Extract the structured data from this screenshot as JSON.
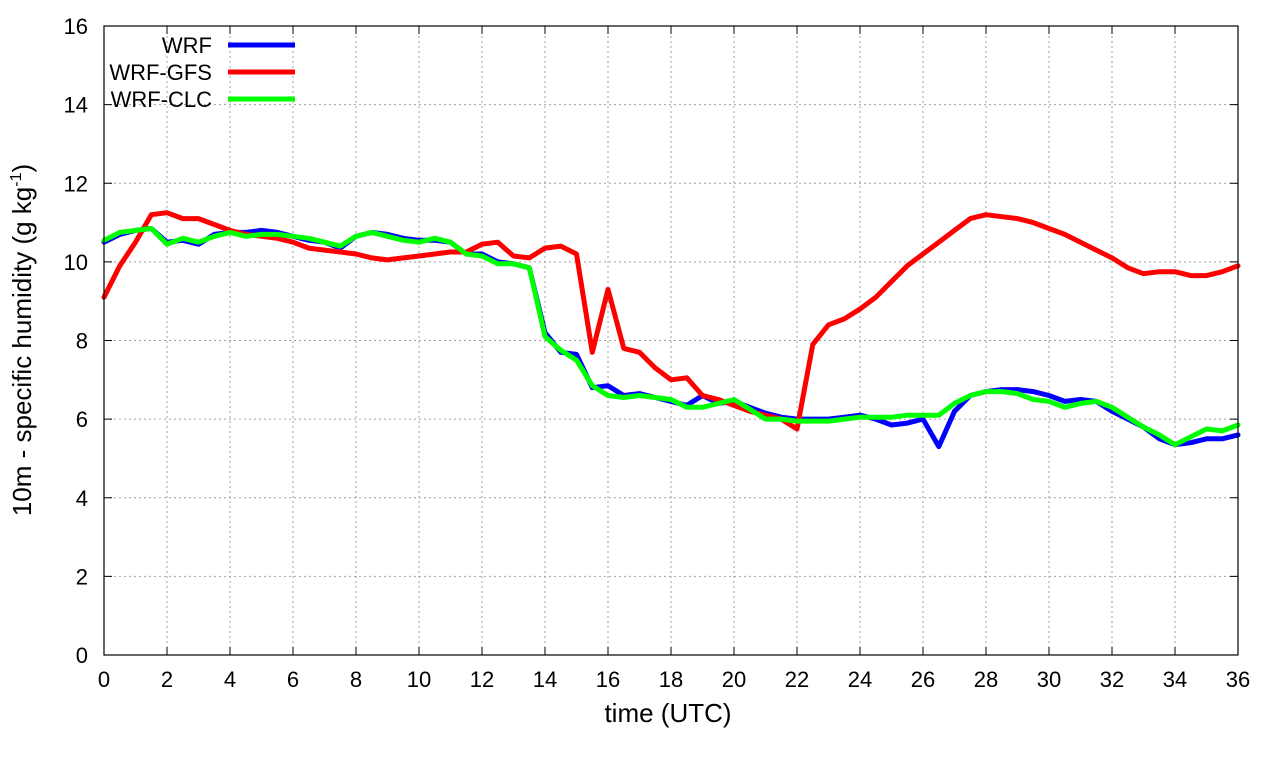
{
  "chart_data": {
    "type": "line",
    "xlabel": "time (UTC)",
    "ylabel_main": "10m - specific humidity (g kg",
    "ylabel_sup": "-1",
    "ylabel_end": ")",
    "xlim": [
      0,
      36
    ],
    "ylim": [
      0,
      16
    ],
    "xticks": [
      0,
      2,
      4,
      6,
      8,
      10,
      12,
      14,
      16,
      18,
      20,
      22,
      24,
      26,
      28,
      30,
      32,
      34,
      36
    ],
    "yticks": [
      0,
      2,
      4,
      6,
      8,
      10,
      12,
      14,
      16
    ],
    "grid": true,
    "legend_position": "top-left",
    "series": [
      {
        "name": "WRF",
        "color": "#0000ff",
        "points": [
          [
            0,
            10.5
          ],
          [
            0.5,
            10.7
          ],
          [
            1,
            10.8
          ],
          [
            1.5,
            10.85
          ],
          [
            2,
            10.5
          ],
          [
            2.5,
            10.55
          ],
          [
            3,
            10.45
          ],
          [
            3.5,
            10.7
          ],
          [
            4,
            10.75
          ],
          [
            4.5,
            10.75
          ],
          [
            5,
            10.8
          ],
          [
            5.5,
            10.75
          ],
          [
            6,
            10.65
          ],
          [
            6.5,
            10.55
          ],
          [
            7,
            10.5
          ],
          [
            7.5,
            10.35
          ],
          [
            8,
            10.65
          ],
          [
            8.5,
            10.75
          ],
          [
            9,
            10.7
          ],
          [
            9.5,
            10.6
          ],
          [
            10,
            10.55
          ],
          [
            10.5,
            10.55
          ],
          [
            11,
            10.5
          ],
          [
            11.5,
            10.2
          ],
          [
            12,
            10.2
          ],
          [
            12.5,
            10.0
          ],
          [
            13,
            9.95
          ],
          [
            13.5,
            9.85
          ],
          [
            14,
            8.2
          ],
          [
            14.5,
            7.7
          ],
          [
            15,
            7.65
          ],
          [
            15.5,
            6.8
          ],
          [
            16,
            6.85
          ],
          [
            16.5,
            6.6
          ],
          [
            17,
            6.65
          ],
          [
            17.5,
            6.55
          ],
          [
            18,
            6.45
          ],
          [
            18.5,
            6.35
          ],
          [
            19,
            6.6
          ],
          [
            19.5,
            6.4
          ],
          [
            20,
            6.45
          ],
          [
            20.5,
            6.3
          ],
          [
            21,
            6.15
          ],
          [
            21.5,
            6.05
          ],
          [
            22,
            6.0
          ],
          [
            22.5,
            6.0
          ],
          [
            23,
            6.0
          ],
          [
            23.5,
            6.05
          ],
          [
            24,
            6.1
          ],
          [
            24.5,
            6.0
          ],
          [
            25,
            5.85
          ],
          [
            25.5,
            5.9
          ],
          [
            26,
            6.0
          ],
          [
            26.5,
            5.3
          ],
          [
            27,
            6.2
          ],
          [
            27.5,
            6.6
          ],
          [
            28,
            6.7
          ],
          [
            28.5,
            6.75
          ],
          [
            29,
            6.75
          ],
          [
            29.5,
            6.7
          ],
          [
            30,
            6.6
          ],
          [
            30.5,
            6.45
          ],
          [
            31,
            6.5
          ],
          [
            31.5,
            6.45
          ],
          [
            32,
            6.2
          ],
          [
            32.5,
            6.0
          ],
          [
            33,
            5.8
          ],
          [
            33.5,
            5.5
          ],
          [
            34,
            5.35
          ],
          [
            34.5,
            5.4
          ],
          [
            35,
            5.5
          ],
          [
            35.5,
            5.5
          ],
          [
            36,
            5.6
          ]
        ]
      },
      {
        "name": "WRF-GFS",
        "color": "#ff0000",
        "points": [
          [
            0,
            9.1
          ],
          [
            0.5,
            9.9
          ],
          [
            1,
            10.5
          ],
          [
            1.5,
            11.2
          ],
          [
            2,
            11.25
          ],
          [
            2.5,
            11.1
          ],
          [
            3,
            11.1
          ],
          [
            3.5,
            10.95
          ],
          [
            4,
            10.8
          ],
          [
            4.5,
            10.7
          ],
          [
            5,
            10.65
          ],
          [
            5.5,
            10.6
          ],
          [
            6,
            10.5
          ],
          [
            6.5,
            10.35
          ],
          [
            7,
            10.3
          ],
          [
            7.5,
            10.25
          ],
          [
            8,
            10.2
          ],
          [
            8.5,
            10.1
          ],
          [
            9,
            10.05
          ],
          [
            9.5,
            10.1
          ],
          [
            10,
            10.15
          ],
          [
            10.5,
            10.2
          ],
          [
            11,
            10.25
          ],
          [
            11.5,
            10.25
          ],
          [
            12,
            10.45
          ],
          [
            12.5,
            10.5
          ],
          [
            13,
            10.15
          ],
          [
            13.5,
            10.1
          ],
          [
            14,
            10.35
          ],
          [
            14.5,
            10.4
          ],
          [
            15,
            10.2
          ],
          [
            15.5,
            7.7
          ],
          [
            16,
            9.3
          ],
          [
            16.5,
            7.8
          ],
          [
            17,
            7.7
          ],
          [
            17.5,
            7.3
          ],
          [
            18,
            7.0
          ],
          [
            18.5,
            7.05
          ],
          [
            19,
            6.6
          ],
          [
            19.5,
            6.5
          ],
          [
            20,
            6.35
          ],
          [
            20.5,
            6.2
          ],
          [
            21,
            6.1
          ],
          [
            21.5,
            6.0
          ],
          [
            22,
            5.75
          ],
          [
            22.5,
            7.9
          ],
          [
            23,
            8.4
          ],
          [
            23.5,
            8.55
          ],
          [
            24,
            8.8
          ],
          [
            24.5,
            9.1
          ],
          [
            25,
            9.5
          ],
          [
            25.5,
            9.9
          ],
          [
            26,
            10.2
          ],
          [
            26.5,
            10.5
          ],
          [
            27,
            10.8
          ],
          [
            27.5,
            11.1
          ],
          [
            28,
            11.2
          ],
          [
            28.5,
            11.15
          ],
          [
            29,
            11.1
          ],
          [
            29.5,
            11.0
          ],
          [
            30,
            10.85
          ],
          [
            30.5,
            10.7
          ],
          [
            31,
            10.5
          ],
          [
            31.5,
            10.3
          ],
          [
            32,
            10.1
          ],
          [
            32.5,
            9.85
          ],
          [
            33,
            9.7
          ],
          [
            33.5,
            9.75
          ],
          [
            34,
            9.75
          ],
          [
            34.5,
            9.65
          ],
          [
            35,
            9.65
          ],
          [
            35.5,
            9.75
          ],
          [
            36,
            9.9
          ]
        ]
      },
      {
        "name": "WRF-CLC",
        "color": "#00ff00",
        "points": [
          [
            0,
            10.55
          ],
          [
            0.5,
            10.75
          ],
          [
            1,
            10.8
          ],
          [
            1.5,
            10.85
          ],
          [
            2,
            10.45
          ],
          [
            2.5,
            10.6
          ],
          [
            3,
            10.5
          ],
          [
            3.5,
            10.65
          ],
          [
            4,
            10.75
          ],
          [
            4.5,
            10.65
          ],
          [
            5,
            10.7
          ],
          [
            5.5,
            10.7
          ],
          [
            6,
            10.65
          ],
          [
            6.5,
            10.6
          ],
          [
            7,
            10.5
          ],
          [
            7.5,
            10.4
          ],
          [
            8,
            10.65
          ],
          [
            8.5,
            10.75
          ],
          [
            9,
            10.65
          ],
          [
            9.5,
            10.55
          ],
          [
            10,
            10.5
          ],
          [
            10.5,
            10.6
          ],
          [
            11,
            10.5
          ],
          [
            11.5,
            10.2
          ],
          [
            12,
            10.15
          ],
          [
            12.5,
            9.95
          ],
          [
            13,
            9.95
          ],
          [
            13.5,
            9.85
          ],
          [
            14,
            8.1
          ],
          [
            14.5,
            7.75
          ],
          [
            15,
            7.5
          ],
          [
            15.5,
            6.85
          ],
          [
            16,
            6.6
          ],
          [
            16.5,
            6.55
          ],
          [
            17,
            6.6
          ],
          [
            17.5,
            6.55
          ],
          [
            18,
            6.5
          ],
          [
            18.5,
            6.3
          ],
          [
            19,
            6.3
          ],
          [
            19.5,
            6.4
          ],
          [
            20,
            6.5
          ],
          [
            20.5,
            6.25
          ],
          [
            21,
            6.0
          ],
          [
            21.5,
            6.0
          ],
          [
            22,
            5.95
          ],
          [
            22.5,
            5.95
          ],
          [
            23,
            5.95
          ],
          [
            23.5,
            6.0
          ],
          [
            24,
            6.05
          ],
          [
            24.5,
            6.05
          ],
          [
            25,
            6.05
          ],
          [
            25.5,
            6.1
          ],
          [
            26,
            6.1
          ],
          [
            26.5,
            6.1
          ],
          [
            27,
            6.4
          ],
          [
            27.5,
            6.6
          ],
          [
            28,
            6.7
          ],
          [
            28.5,
            6.7
          ],
          [
            29,
            6.65
          ],
          [
            29.5,
            6.5
          ],
          [
            30,
            6.45
          ],
          [
            30.5,
            6.3
          ],
          [
            31,
            6.4
          ],
          [
            31.5,
            6.45
          ],
          [
            32,
            6.3
          ],
          [
            32.5,
            6.05
          ],
          [
            33,
            5.8
          ],
          [
            33.5,
            5.6
          ],
          [
            34,
            5.35
          ],
          [
            34.5,
            5.55
          ],
          [
            35,
            5.75
          ],
          [
            35.5,
            5.7
          ],
          [
            36,
            5.85
          ]
        ]
      }
    ]
  }
}
